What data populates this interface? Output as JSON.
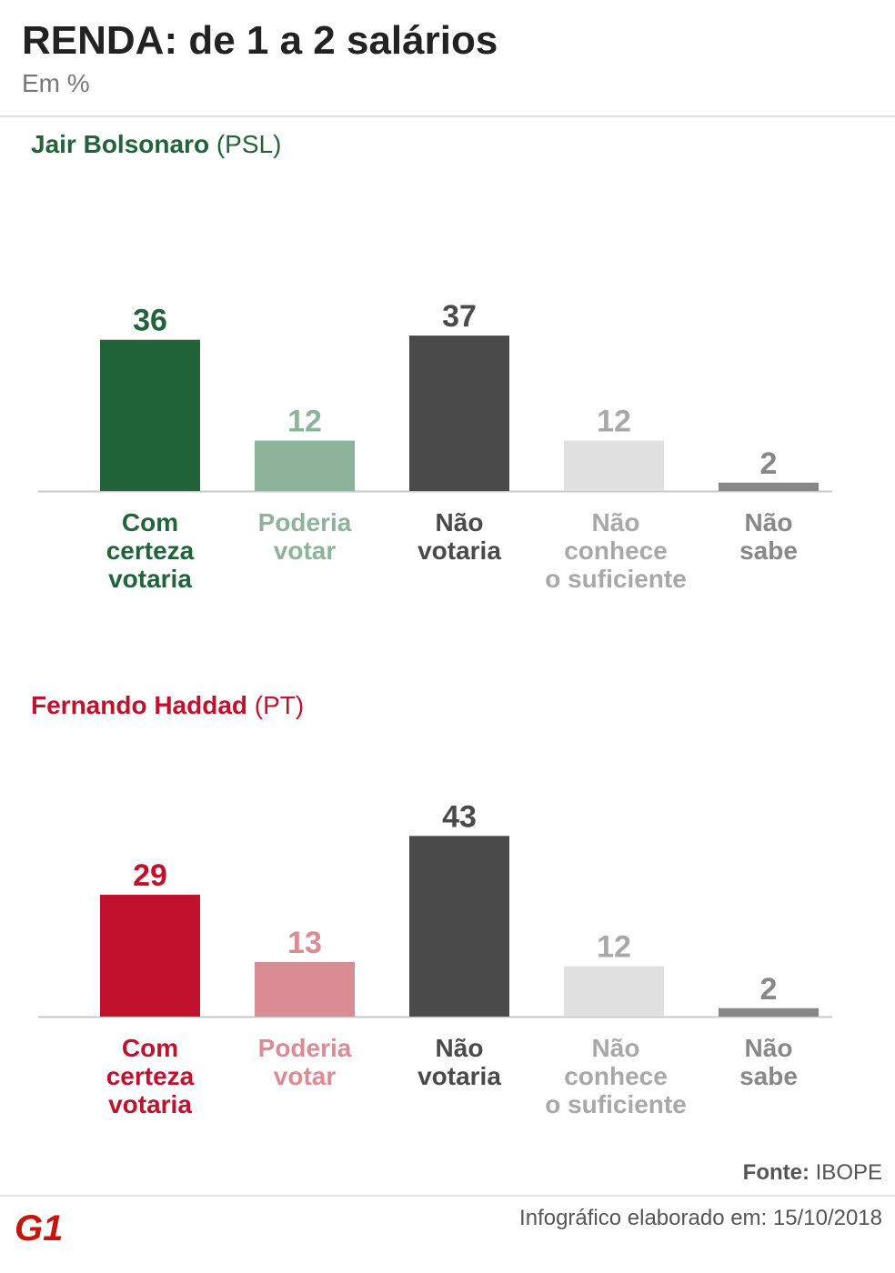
{
  "title": "RENDA: de 1 a 2 salários",
  "subtitle": "Em %",
  "colors": {
    "bolsonaro": "#21643a",
    "bolsonaro_light": "#8db39b",
    "haddad": "#c0122d",
    "haddad_light": "#da8b93",
    "dark": "#4a4a4a",
    "light_gray": "#e0e0e0",
    "mid_gray": "#888888",
    "light_gray_text": "#a8a8a8",
    "axis": "#c8c8c8"
  },
  "chart_data": [
    {
      "type": "bar",
      "title": "Jair Bolsonaro",
      "party": "(PSL)",
      "categories": [
        [
          "Com",
          "certeza",
          "votaria"
        ],
        [
          "Poderia",
          "votar"
        ],
        [
          "Não",
          "votaria"
        ],
        [
          "Não",
          "conhece",
          "o suficiente"
        ],
        [
          "Não",
          "sabe"
        ]
      ],
      "values": [
        36,
        12,
        37,
        12,
        2
      ],
      "bar_colors": [
        "bolsonaro",
        "bolsonaro_light",
        "dark",
        "light_gray",
        "mid_gray"
      ],
      "label_colors": [
        "bolsonaro",
        "bolsonaro_light",
        "dark",
        "light_gray_text",
        "mid_gray"
      ],
      "title_color": "bolsonaro"
    },
    {
      "type": "bar",
      "title": "Fernando Haddad",
      "party": "(PT)",
      "categories": [
        [
          "Com",
          "certeza",
          "votaria"
        ],
        [
          "Poderia",
          "votar"
        ],
        [
          "Não",
          "votaria"
        ],
        [
          "Não",
          "conhece",
          "o suficiente"
        ],
        [
          "Não",
          "sabe"
        ]
      ],
      "values": [
        29,
        13,
        43,
        12,
        2
      ],
      "bar_colors": [
        "haddad",
        "haddad_light",
        "dark",
        "light_gray",
        "mid_gray"
      ],
      "label_colors": [
        "haddad",
        "haddad_light",
        "dark",
        "light_gray_text",
        "mid_gray"
      ],
      "title_color": "haddad"
    }
  ],
  "footer": {
    "source_label": "Fonte:",
    "source_value": "IBOPE",
    "credit": "Infográfico elaborado em: 15/10/2018",
    "logo_text": "G1",
    "logo_icon": "g1-logo-icon"
  }
}
